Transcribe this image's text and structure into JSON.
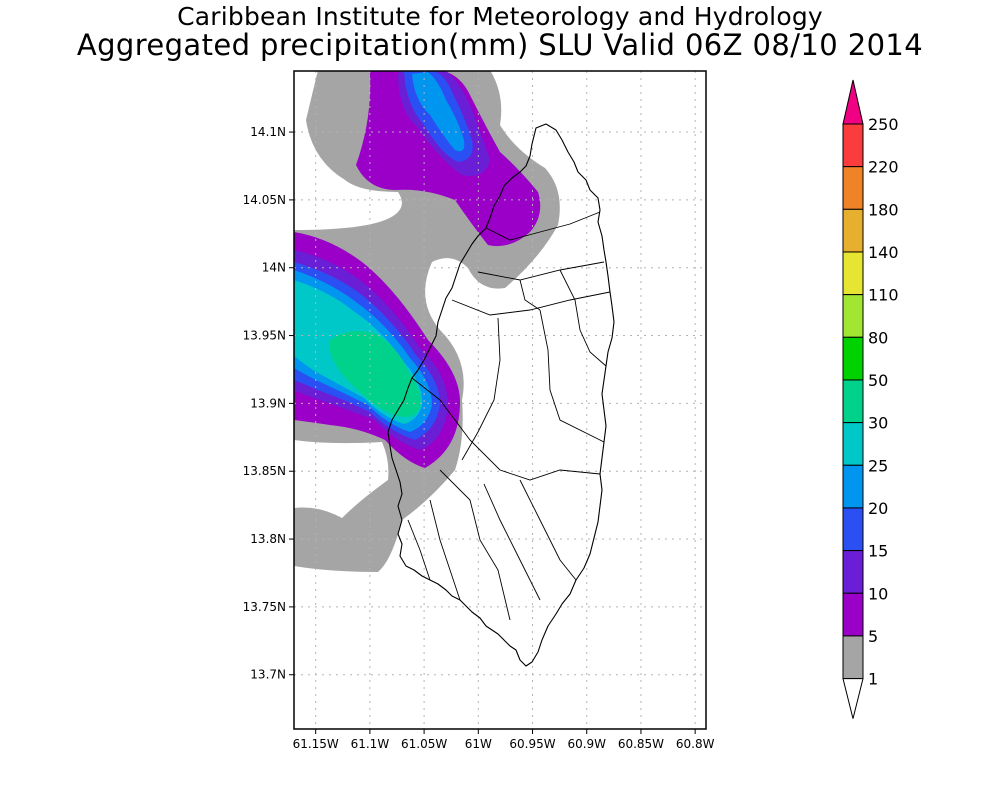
{
  "header": {
    "institution": "Caribbean Institute for Meteorology and Hydrology",
    "product": "Aggregated precipitation(mm) SLU Valid 06Z 08/10 2014"
  },
  "map": {
    "lon_range": [
      -61.17,
      -60.79
    ],
    "lat_range": [
      13.66,
      14.145
    ],
    "lat_ticks": [
      {
        "value": 14.1,
        "label": "14.1N"
      },
      {
        "value": 14.05,
        "label": "14.05N"
      },
      {
        "value": 14.0,
        "label": "14N"
      },
      {
        "value": 13.95,
        "label": "13.95N"
      },
      {
        "value": 13.9,
        "label": "13.9N"
      },
      {
        "value": 13.85,
        "label": "13.85N"
      },
      {
        "value": 13.8,
        "label": "13.8N"
      },
      {
        "value": 13.75,
        "label": "13.75N"
      },
      {
        "value": 13.7,
        "label": "13.7N"
      }
    ],
    "lon_ticks": [
      {
        "value": -61.15,
        "label": "61.15W"
      },
      {
        "value": -61.1,
        "label": "61.1W"
      },
      {
        "value": -61.05,
        "label": "61.05W"
      },
      {
        "value": -61.0,
        "label": "61W"
      },
      {
        "value": -60.95,
        "label": "60.95W"
      },
      {
        "value": -60.9,
        "label": "60.9W"
      },
      {
        "value": -60.85,
        "label": "60.85W"
      },
      {
        "value": -60.8,
        "label": "60.8W"
      }
    ],
    "grid": true
  },
  "legend": {
    "levels": [
      "1",
      "5",
      "10",
      "15",
      "20",
      "25",
      "30",
      "50",
      "80",
      "110",
      "140",
      "180",
      "220",
      "250"
    ],
    "colors": [
      "#ffffff",
      "#a5a5a5",
      "#9a00c8",
      "#6a1fd6",
      "#2a4ff2",
      "#0096f0",
      "#00c8c8",
      "#00d28c",
      "#00d200",
      "#a0e632",
      "#e6e632",
      "#e6af2d",
      "#f08228",
      "#fa3c3c",
      "#f00082"
    ]
  },
  "colors": {
    "gray": "#a5a5a5",
    "purple": "#9a00c8",
    "violet": "#6a1fd6",
    "blue": "#2a4ff2",
    "lightblue": "#0096f0",
    "cyan": "#00c8c8",
    "green": "#00d28c",
    "frame": "#000000",
    "grid": "#b4b4b4"
  }
}
